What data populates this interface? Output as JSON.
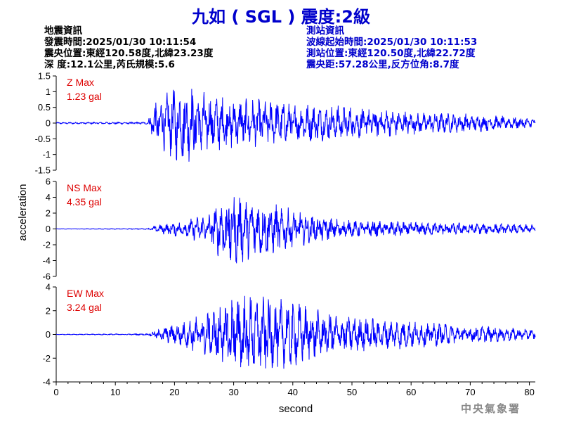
{
  "title": "九如 ( SGL ) 震度:2級",
  "earthquake_info": {
    "heading": "地震資訊",
    "origin_time": "發震時間:2025/01/30 10:11:54",
    "epicenter": "震央位置:東經120.58度,北緯23.23度",
    "depth_magnitude": "深 度:12.1公里,芮氏規模:5.6"
  },
  "station_info": {
    "heading": "測站資訊",
    "wave_onset_time": "波線起始時間:2025/01/30 10:11:53",
    "station_location": "測站位置:東經120.50度,北緯22.72度",
    "distance_azimuth": "震央距:57.28公里,反方位角:8.7度"
  },
  "agency": "中央氣象署",
  "chart_data": {
    "type": "line",
    "xlabel": "second",
    "ylabel": "acceleration",
    "xlim": [
      0,
      81
    ],
    "x_ticks": [
      "0",
      "10",
      "20",
      "30",
      "40",
      "50",
      "60",
      "70",
      "80"
    ],
    "line_color": "#0000ff",
    "label_color": "#dd0000",
    "panels": [
      {
        "name": "Z",
        "label": "Z Max",
        "max_text": "1.23 gal",
        "peak": 1.23,
        "ylim": [
          -1.5,
          1.5
        ],
        "y_ticks": [
          "1.5",
          "1",
          "0.5",
          "0",
          "-0.5",
          "-1",
          "-1.5"
        ],
        "envelope": [
          [
            0,
            0.02
          ],
          [
            15.5,
            0.03
          ],
          [
            16.5,
            0.6
          ],
          [
            20,
            1.1
          ],
          [
            22,
            1.2
          ],
          [
            26,
            0.85
          ],
          [
            32,
            0.75
          ],
          [
            40,
            0.6
          ],
          [
            50,
            0.5
          ],
          [
            60,
            0.35
          ],
          [
            70,
            0.28
          ],
          [
            81,
            0.15
          ]
        ]
      },
      {
        "name": "NS",
        "label": "NS Max",
        "max_text": "4.35 gal",
        "peak": 4.35,
        "ylim": [
          -6,
          6
        ],
        "y_ticks": [
          "6",
          "4",
          "2",
          "0",
          "-2",
          "-4",
          "-6"
        ],
        "envelope": [
          [
            0,
            0.02
          ],
          [
            15.5,
            0.05
          ],
          [
            18,
            0.5
          ],
          [
            22,
            0.9
          ],
          [
            26,
            1.5
          ],
          [
            29,
            3.8
          ],
          [
            32,
            3.0
          ],
          [
            36,
            2.6
          ],
          [
            40,
            1.8
          ],
          [
            45,
            1.2
          ],
          [
            50,
            0.8
          ],
          [
            60,
            0.75
          ],
          [
            70,
            0.55
          ],
          [
            81,
            0.4
          ]
        ]
      },
      {
        "name": "EW",
        "label": "EW Max",
        "max_text": "3.24 gal",
        "peak": 3.24,
        "ylim": [
          -4,
          4
        ],
        "y_ticks": [
          "4",
          "2",
          "0",
          "-2",
          "-4"
        ],
        "envelope": [
          [
            0,
            0.02
          ],
          [
            15.5,
            0.05
          ],
          [
            18,
            0.5
          ],
          [
            22,
            0.9
          ],
          [
            26,
            1.6
          ],
          [
            30,
            2.8
          ],
          [
            35,
            2.5
          ],
          [
            40,
            2.2
          ],
          [
            45,
            1.5
          ],
          [
            50,
            1.2
          ],
          [
            60,
            0.9
          ],
          [
            70,
            0.6
          ],
          [
            81,
            0.35
          ]
        ]
      }
    ]
  }
}
